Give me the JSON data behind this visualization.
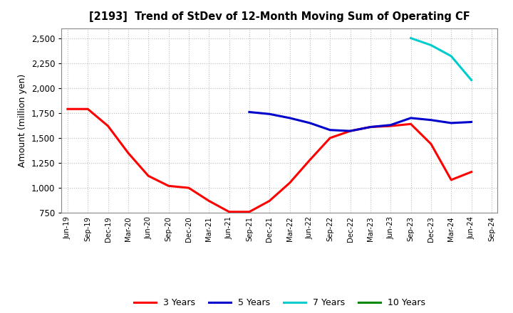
{
  "title": "[2193]  Trend of StDev of 12-Month Moving Sum of Operating CF",
  "ylabel": "Amount (million yen)",
  "ylim": [
    750,
    2600
  ],
  "yticks": [
    750,
    1000,
    1250,
    1500,
    1750,
    2000,
    2250,
    2500
  ],
  "background_color": "#ffffff",
  "grid_color": "#bbbbbb",
  "series": {
    "3 Years": {
      "color": "#ff0000",
      "x": [
        "Jun-19",
        "Sep-19",
        "Dec-19",
        "Mar-20",
        "Jun-20",
        "Sep-20",
        "Dec-20",
        "Mar-21",
        "Jun-21",
        "Sep-21",
        "Dec-21",
        "Mar-22",
        "Jun-22",
        "Sep-22",
        "Dec-22",
        "Mar-23",
        "Jun-23",
        "Sep-23",
        "Dec-23",
        "Mar-24",
        "Jun-24"
      ],
      "y": [
        1790,
        1790,
        1620,
        1350,
        1120,
        1020,
        1000,
        870,
        760,
        760,
        870,
        1050,
        1280,
        1500,
        1570,
        1610,
        1620,
        1640,
        1440,
        1080,
        1160
      ]
    },
    "5 Years": {
      "color": "#0000cc",
      "x": [
        "Sep-21",
        "Dec-21",
        "Mar-22",
        "Jun-22",
        "Sep-22",
        "Dec-22",
        "Mar-23",
        "Jun-23",
        "Sep-23",
        "Dec-23",
        "Mar-24",
        "Jun-24"
      ],
      "y": [
        1760,
        1740,
        1700,
        1650,
        1580,
        1570,
        1610,
        1630,
        1700,
        1680,
        1650,
        1660
      ]
    },
    "7 Years": {
      "color": "#00cccc",
      "x": [
        "Sep-23",
        "Dec-23",
        "Mar-24",
        "Jun-24"
      ],
      "y": [
        2500,
        2430,
        2320,
        2080
      ]
    },
    "10 Years": {
      "color": "#008800",
      "x": [],
      "y": []
    }
  },
  "xtick_labels": [
    "Jun-19",
    "Sep-19",
    "Dec-19",
    "Mar-20",
    "Jun-20",
    "Sep-20",
    "Dec-20",
    "Mar-21",
    "Jun-21",
    "Sep-21",
    "Dec-21",
    "Mar-22",
    "Jun-22",
    "Sep-22",
    "Dec-22",
    "Mar-23",
    "Jun-23",
    "Sep-23",
    "Dec-23",
    "Mar-24",
    "Jun-24",
    "Sep-24"
  ],
  "legend_order": [
    "3 Years",
    "5 Years",
    "7 Years",
    "10 Years"
  ]
}
